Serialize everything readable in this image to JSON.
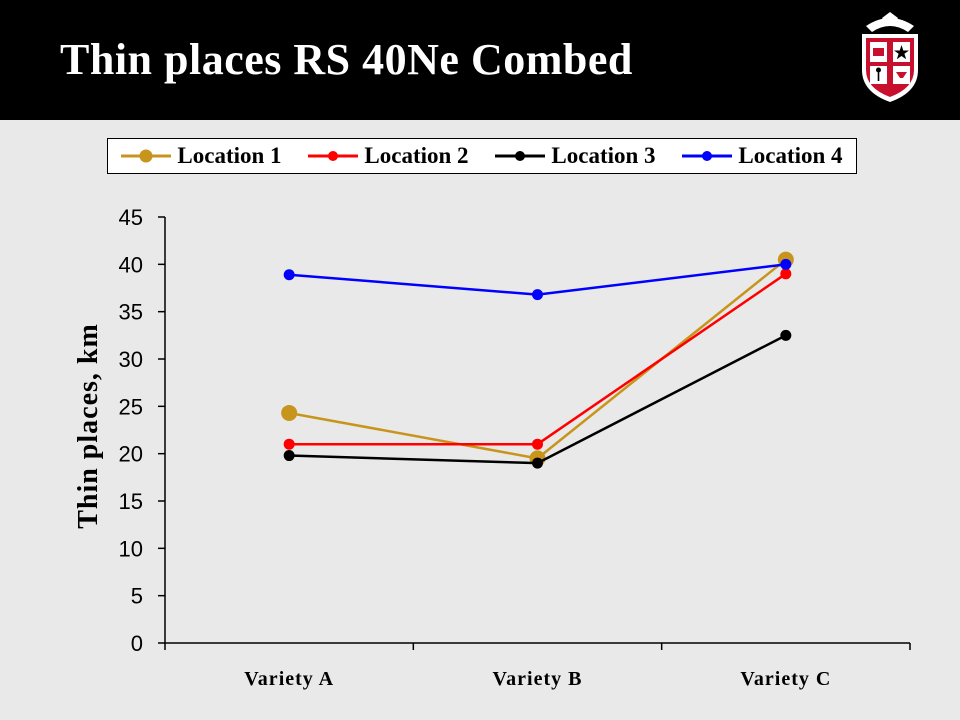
{
  "slide": {
    "title": "Thin places RS 40Ne Combed"
  },
  "logo": {
    "icon": "university-seal-icon",
    "colors": [
      "#c8102e",
      "#ffffff",
      "#000000"
    ]
  },
  "chart_data": {
    "type": "line",
    "categories": [
      "Variety A",
      "Variety B",
      "Variety C"
    ],
    "ylabel": "Thin places, km",
    "xlabel": "",
    "ylim": [
      0,
      45
    ],
    "yticks": [
      0,
      5,
      10,
      15,
      20,
      25,
      30,
      35,
      40,
      45
    ],
    "grid": false,
    "legend_position": "top",
    "series": [
      {
        "name": "Location 1",
        "color": "#c8951c",
        "values": [
          24.3,
          19.5,
          40.5
        ]
      },
      {
        "name": "Location 2",
        "color": "#ff0000",
        "values": [
          21.0,
          21.0,
          39.0
        ]
      },
      {
        "name": "Location 3",
        "color": "#000000",
        "values": [
          19.8,
          19.0,
          32.5
        ]
      },
      {
        "name": "Location 4",
        "color": "#0000ff",
        "values": [
          38.9,
          36.8,
          40.0
        ]
      }
    ]
  }
}
